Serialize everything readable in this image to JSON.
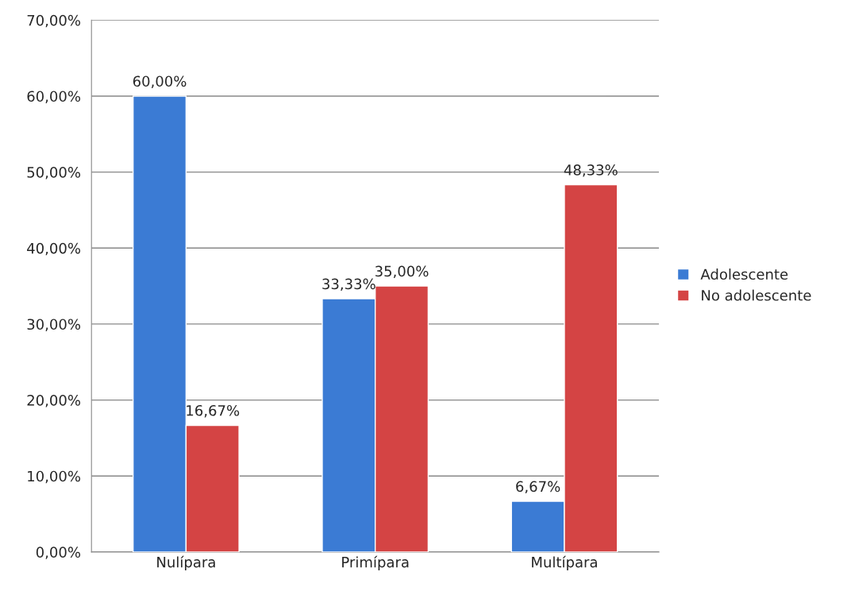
{
  "chart_data": {
    "type": "bar",
    "categories": [
      "Nulípara",
      "Primípara",
      "Multípara"
    ],
    "series": [
      {
        "name": "Adolescente",
        "color": "#3b7bd4",
        "values": [
          60.0,
          33.33,
          6.67
        ],
        "value_labels": [
          "60,00%",
          "33,33%",
          "6,67%"
        ]
      },
      {
        "name": "No adolescente",
        "color": "#d44444",
        "values": [
          16.67,
          35.0,
          48.33
        ],
        "value_labels": [
          "16,67%",
          "35,00%",
          "48,33%"
        ]
      }
    ],
    "ylim": [
      0,
      70
    ],
    "yticks": [
      {
        "value": 0,
        "label": "0,00%"
      },
      {
        "value": 10,
        "label": "10,00%"
      },
      {
        "value": 20,
        "label": "20,00%"
      },
      {
        "value": 30,
        "label": "30,00%"
      },
      {
        "value": 40,
        "label": "40,00%"
      },
      {
        "value": 50,
        "label": "50,00%"
      },
      {
        "value": 60,
        "label": "60,00%"
      },
      {
        "value": 70,
        "label": "70,00%"
      }
    ],
    "grid": "y",
    "legend": "right"
  }
}
